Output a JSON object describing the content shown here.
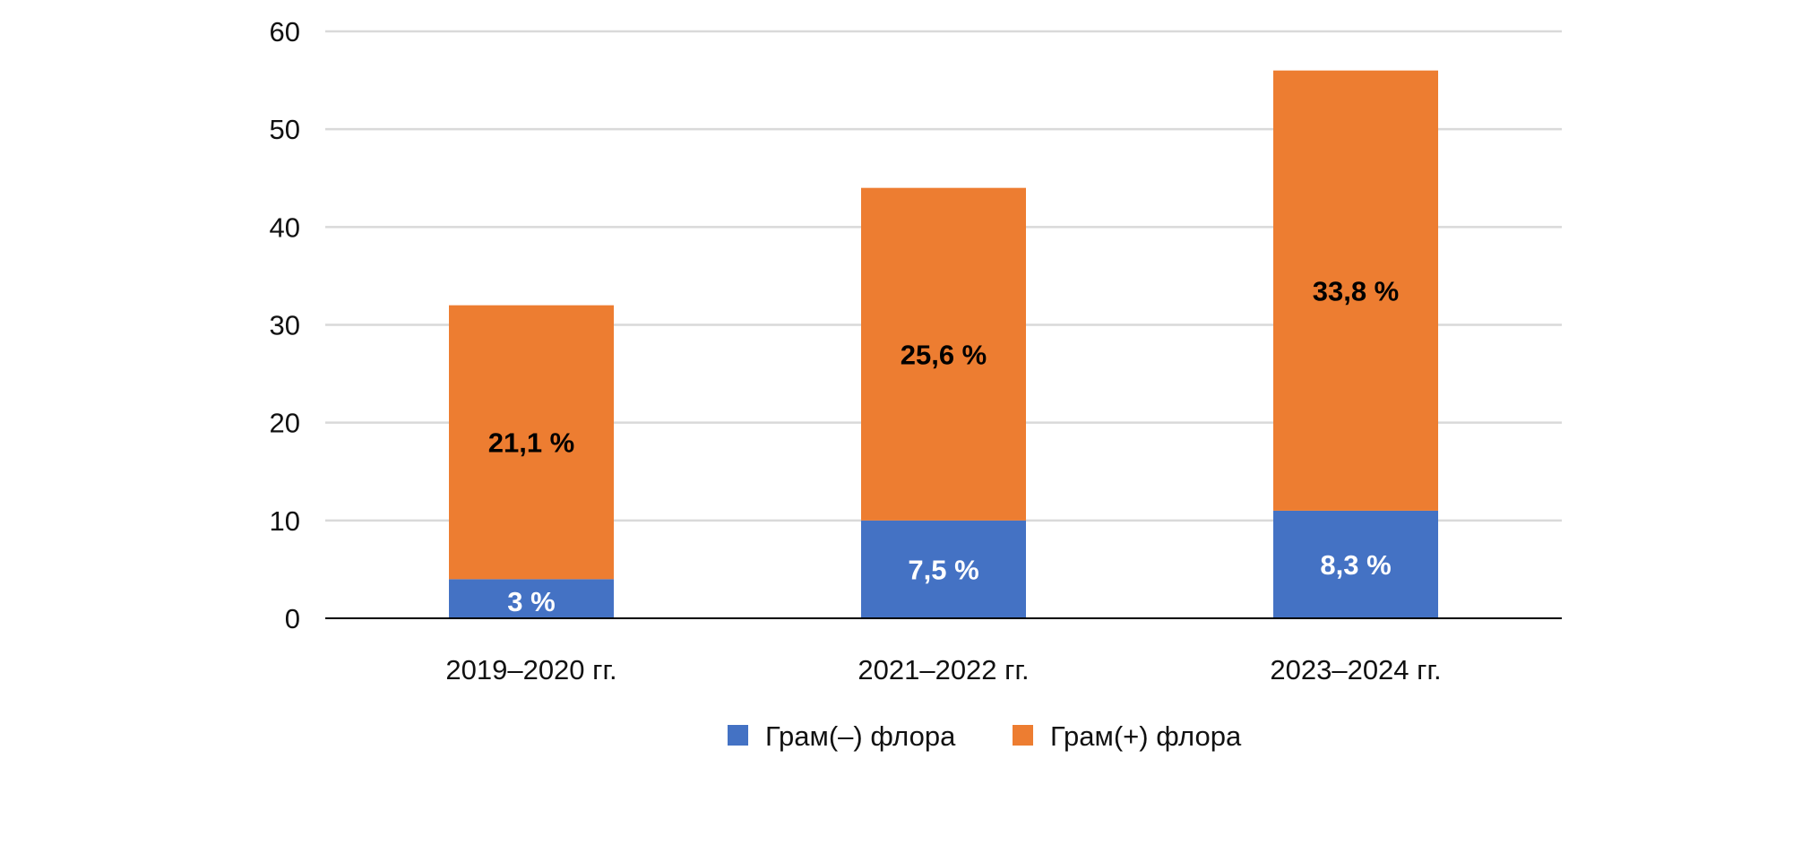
{
  "chart_data": {
    "type": "bar",
    "stacked": true,
    "title": "",
    "xlabel": "",
    "ylabel": "",
    "ylim": [
      0,
      60
    ],
    "yticks": [
      0,
      10,
      20,
      30,
      40,
      50,
      60
    ],
    "grid": true,
    "legend_position": "bottom",
    "categories": [
      "2019–2020 гг.",
      "2021–2022 гг.",
      "2023–2024 гг."
    ],
    "series": [
      {
        "name": "Грам(–) флора",
        "color": "#4472C4",
        "label_color": "#ffffff",
        "values": [
          4,
          10,
          11
        ],
        "data_labels": [
          "3 %",
          "7,5 %",
          "8,3 %"
        ]
      },
      {
        "name": "Грам(+) флора",
        "color": "#ED7D31",
        "label_color": "#000000",
        "values": [
          28,
          34,
          45
        ],
        "data_labels": [
          "21,1 %",
          "25,6 %",
          "33,8 %"
        ]
      }
    ]
  }
}
